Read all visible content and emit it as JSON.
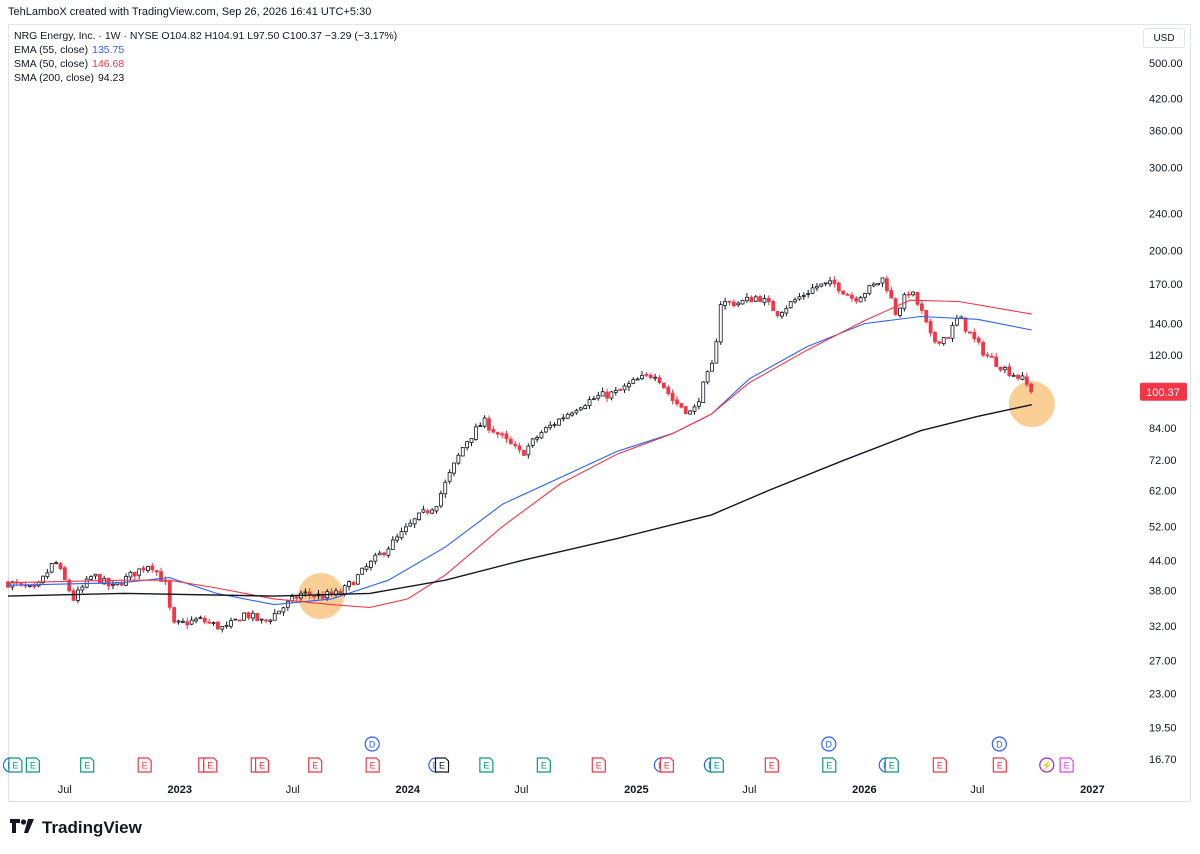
{
  "header": {
    "text": "TehLamboX created with TradingView.com, Sep 26, 2026 16:41 UTC+5:30"
  },
  "legend": {
    "symbol_line": "NRG Energy, Inc. · 1W · NYSE  O104.82  H104.91  L97.50  C100.37  −3.29 (−3.17%)",
    "indicators": [
      {
        "label": "EMA (55, close)",
        "value": "135.75",
        "color": "#2962ff"
      },
      {
        "label": "SMA (50, close)",
        "value": "146.68",
        "color": "#f23645"
      },
      {
        "label": "SMA (200, close)",
        "value": "94.23",
        "color": "#131722"
      }
    ]
  },
  "currency": "USD",
  "brand": {
    "name": "TradingView",
    "logo_icon": "tv-logo-icon"
  },
  "chart_data": {
    "type": "candlestick",
    "scale": "log",
    "symbol": "NRG Energy, Inc.",
    "interval": "1W",
    "exchange": "NYSE",
    "ylim": [
      16.0,
      560.0
    ],
    "y_ticks": [
      "500.00",
      "420.00",
      "360.00",
      "300.00",
      "240.00",
      "200.00",
      "170.00",
      "140.00",
      "120.00",
      "100.37",
      "84.00",
      "72.00",
      "62.00",
      "52.00",
      "44.00",
      "38.00",
      "32.00",
      "27.00",
      "23.00",
      "19.50",
      "16.70"
    ],
    "last_price_label": "100.37",
    "x_ticks": [
      {
        "label": "Jul",
        "date": "2022-07-01"
      },
      {
        "label": "2023",
        "date": "2023-01-01"
      },
      {
        "label": "Jul",
        "date": "2023-07-01"
      },
      {
        "label": "2024",
        "date": "2024-01-01"
      },
      {
        "label": "Jul",
        "date": "2024-07-01"
      },
      {
        "label": "2025",
        "date": "2025-01-01"
      },
      {
        "label": "Jul",
        "date": "2025-07-01"
      },
      {
        "label": "2026",
        "date": "2026-01-01"
      },
      {
        "label": "Jul",
        "date": "2026-07-01"
      },
      {
        "label": "2027",
        "date": "2027-01-01"
      }
    ],
    "xlim": [
      "2022-04-01",
      "2027-03-15"
    ],
    "price_path": [
      [
        "2022-04-01",
        39.5
      ],
      [
        "2022-05-15",
        38.0
      ],
      [
        "2022-06-15",
        44.0
      ],
      [
        "2022-07-15",
        36.5
      ],
      [
        "2022-08-15",
        41.0
      ],
      [
        "2022-09-15",
        38.5
      ],
      [
        "2022-10-15",
        41.0
      ],
      [
        "2022-11-15",
        43.5
      ],
      [
        "2022-12-10",
        39.0
      ],
      [
        "2022-12-20",
        32.0
      ],
      [
        "2023-02-01",
        33.0
      ],
      [
        "2023-03-15",
        31.5
      ],
      [
        "2023-04-15",
        34.0
      ],
      [
        "2023-05-15",
        32.5
      ],
      [
        "2023-06-15",
        35.0
      ],
      [
        "2023-07-15",
        37.5
      ],
      [
        "2023-08-15",
        37.0
      ],
      [
        "2023-09-15",
        37.5
      ],
      [
        "2023-10-15",
        41.0
      ],
      [
        "2023-11-15",
        45.0
      ],
      [
        "2023-12-15",
        49.0
      ],
      [
        "2024-01-15",
        54.0
      ],
      [
        "2024-02-15",
        58.0
      ],
      [
        "2024-03-01",
        64.0
      ],
      [
        "2024-04-01",
        78.0
      ],
      [
        "2024-05-01",
        87.0
      ],
      [
        "2024-06-01",
        80.0
      ],
      [
        "2024-07-01",
        74.0
      ],
      [
        "2024-08-01",
        82.0
      ],
      [
        "2024-09-01",
        88.0
      ],
      [
        "2024-10-01",
        94.0
      ],
      [
        "2024-11-01",
        98.0
      ],
      [
        "2024-12-01",
        100.0
      ],
      [
        "2025-01-01",
        106.0
      ],
      [
        "2025-02-01",
        110.0
      ],
      [
        "2025-03-01",
        96.0
      ],
      [
        "2025-04-01",
        90.0
      ],
      [
        "2025-04-20",
        105.0
      ],
      [
        "2025-05-05",
        116.0
      ],
      [
        "2025-05-15",
        155.0
      ],
      [
        "2025-06-15",
        155.0
      ],
      [
        "2025-07-15",
        160.0
      ],
      [
        "2025-08-15",
        148.0
      ],
      [
        "2025-09-15",
        158.0
      ],
      [
        "2025-10-15",
        168.0
      ],
      [
        "2025-11-15",
        170.0
      ],
      [
        "2025-12-15",
        158.0
      ],
      [
        "2026-01-15",
        168.0
      ],
      [
        "2026-02-01",
        175.0
      ],
      [
        "2026-02-20",
        148.0
      ],
      [
        "2026-03-15",
        165.0
      ],
      [
        "2026-04-01",
        150.0
      ],
      [
        "2026-04-20",
        128.0
      ],
      [
        "2026-05-15",
        132.0
      ],
      [
        "2026-06-01",
        145.0
      ],
      [
        "2026-06-20",
        132.0
      ],
      [
        "2026-07-15",
        120.0
      ],
      [
        "2026-08-15",
        112.0
      ],
      [
        "2026-09-10",
        107.0
      ],
      [
        "2026-09-26",
        100.37
      ]
    ],
    "series": [
      {
        "name": "EMA (55, close)",
        "color": "#2962ff",
        "points": [
          [
            "2022-04-01",
            39.0
          ],
          [
            "2022-10-01",
            39.5
          ],
          [
            "2022-12-15",
            40.5
          ],
          [
            "2023-03-01",
            37.5
          ],
          [
            "2023-06-01",
            35.5
          ],
          [
            "2023-09-01",
            36.5
          ],
          [
            "2023-12-01",
            40.0
          ],
          [
            "2024-03-01",
            47.0
          ],
          [
            "2024-06-01",
            58.0
          ],
          [
            "2024-09-01",
            66.0
          ],
          [
            "2024-12-01",
            75.0
          ],
          [
            "2025-03-01",
            82.0
          ],
          [
            "2025-05-01",
            90.0
          ],
          [
            "2025-07-01",
            107.0
          ],
          [
            "2025-10-01",
            125.0
          ],
          [
            "2026-01-01",
            140.0
          ],
          [
            "2026-04-01",
            145.0
          ],
          [
            "2026-07-01",
            143.0
          ],
          [
            "2026-09-26",
            135.75
          ]
        ]
      },
      {
        "name": "SMA (50, close)",
        "color": "#f23645",
        "points": [
          [
            "2022-04-01",
            39.5
          ],
          [
            "2022-10-01",
            40.0
          ],
          [
            "2022-12-15",
            40.0
          ],
          [
            "2023-03-01",
            38.5
          ],
          [
            "2023-06-01",
            36.5
          ],
          [
            "2023-09-01",
            35.5
          ],
          [
            "2023-11-01",
            35.0
          ],
          [
            "2024-01-01",
            36.5
          ],
          [
            "2024-03-01",
            41.0
          ],
          [
            "2024-06-01",
            52.0
          ],
          [
            "2024-09-01",
            64.0
          ],
          [
            "2024-12-01",
            74.0
          ],
          [
            "2025-03-01",
            82.0
          ],
          [
            "2025-05-01",
            90.0
          ],
          [
            "2025-07-01",
            105.0
          ],
          [
            "2025-10-01",
            123.0
          ],
          [
            "2026-01-01",
            142.0
          ],
          [
            "2026-03-15",
            157.0
          ],
          [
            "2026-06-01",
            156.0
          ],
          [
            "2026-09-26",
            146.68
          ]
        ]
      },
      {
        "name": "SMA (200, close)",
        "color": "#131722",
        "points": [
          [
            "2022-04-01",
            37.0
          ],
          [
            "2022-10-01",
            37.5
          ],
          [
            "2023-06-01",
            37.0
          ],
          [
            "2023-11-01",
            37.5
          ],
          [
            "2024-03-01",
            40.0
          ],
          [
            "2024-07-01",
            44.0
          ],
          [
            "2024-12-01",
            49.0
          ],
          [
            "2025-05-01",
            55.0
          ],
          [
            "2025-08-01",
            62.0
          ],
          [
            "2025-12-01",
            72.0
          ],
          [
            "2026-04-01",
            83.0
          ],
          [
            "2026-07-01",
            89.0
          ],
          [
            "2026-09-26",
            94.23
          ]
        ]
      }
    ],
    "highlights": [
      {
        "date": "2023-08-15",
        "price": 37.0,
        "color": "#f9c784"
      },
      {
        "date": "2026-09-26",
        "price": 94.5,
        "color": "#f9c784"
      }
    ],
    "events": [
      {
        "date": "2022-04-05",
        "type": "D",
        "row": "bottom"
      },
      {
        "date": "2022-04-12",
        "type": "E",
        "row": "bottom"
      },
      {
        "date": "2022-05-10",
        "type": "E",
        "row": "bottom"
      },
      {
        "date": "2022-08-05",
        "type": "E",
        "row": "bottom"
      },
      {
        "date": "2022-11-05",
        "type": "E",
        "row": "bottom",
        "red": true
      },
      {
        "date": "2023-02-10",
        "type": "E",
        "row": "bottom",
        "red": true
      },
      {
        "date": "2023-02-18",
        "type": "E",
        "row": "bottom",
        "red": true
      },
      {
        "date": "2023-05-05",
        "type": "E",
        "row": "bottom",
        "red": true
      },
      {
        "date": "2023-05-12",
        "type": "E",
        "row": "bottom",
        "red": true
      },
      {
        "date": "2023-08-05",
        "type": "E",
        "row": "bottom",
        "red": true
      },
      {
        "date": "2023-11-05",
        "type": "E",
        "row": "bottom",
        "red": true
      },
      {
        "date": "2023-11-05",
        "type": "D",
        "row": "top"
      },
      {
        "date": "2024-02-15",
        "type": "D",
        "row": "bottom"
      },
      {
        "date": "2024-02-24",
        "type": "E",
        "row": "bottom",
        "dark": true
      },
      {
        "date": "2024-05-05",
        "type": "E",
        "row": "bottom"
      },
      {
        "date": "2024-08-05",
        "type": "E",
        "row": "bottom"
      },
      {
        "date": "2024-11-01",
        "type": "E",
        "row": "bottom",
        "red": true
      },
      {
        "date": "2025-02-10",
        "type": "D",
        "row": "bottom"
      },
      {
        "date": "2025-02-18",
        "type": "E",
        "row": "bottom",
        "red": true
      },
      {
        "date": "2025-05-01",
        "type": "D",
        "row": "bottom"
      },
      {
        "date": "2025-05-09",
        "type": "E",
        "row": "bottom"
      },
      {
        "date": "2025-08-05",
        "type": "E",
        "row": "bottom",
        "red": true
      },
      {
        "date": "2025-11-05",
        "type": "E",
        "row": "bottom"
      },
      {
        "date": "2025-11-05",
        "type": "D",
        "row": "top"
      },
      {
        "date": "2026-02-05",
        "type": "D",
        "row": "bottom"
      },
      {
        "date": "2026-02-13",
        "type": "E",
        "row": "bottom"
      },
      {
        "date": "2026-05-01",
        "type": "E",
        "row": "bottom",
        "red": true
      },
      {
        "date": "2026-08-05",
        "type": "E",
        "row": "bottom",
        "red": true
      },
      {
        "date": "2026-08-05",
        "type": "D",
        "row": "top"
      },
      {
        "date": "2026-10-20",
        "type": "bolt",
        "row": "bottom"
      },
      {
        "date": "2026-11-20",
        "type": "E",
        "row": "bottom",
        "future": true
      }
    ]
  }
}
